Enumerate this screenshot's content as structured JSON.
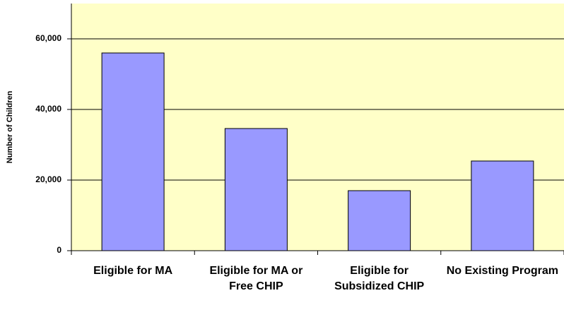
{
  "chart_data": {
    "type": "bar",
    "y_label": "Number of Children",
    "categories": [
      "Eligible for MA",
      "Eligible for MA or Free CHIP",
      "Eligible for Subsidized CHIP",
      "No Existing Program"
    ],
    "values": [
      56000,
      34600,
      17000,
      25400
    ],
    "color": "#9999ff",
    "ylim": [
      0,
      70000
    ],
    "yticks": [
      0,
      {
        "value": 20000,
        "label": "20,000"
      },
      {
        "value": 40000,
        "label": "40,000"
      },
      {
        "value": 60000,
        "label": "60,000"
      }
    ],
    "grid": true
  }
}
